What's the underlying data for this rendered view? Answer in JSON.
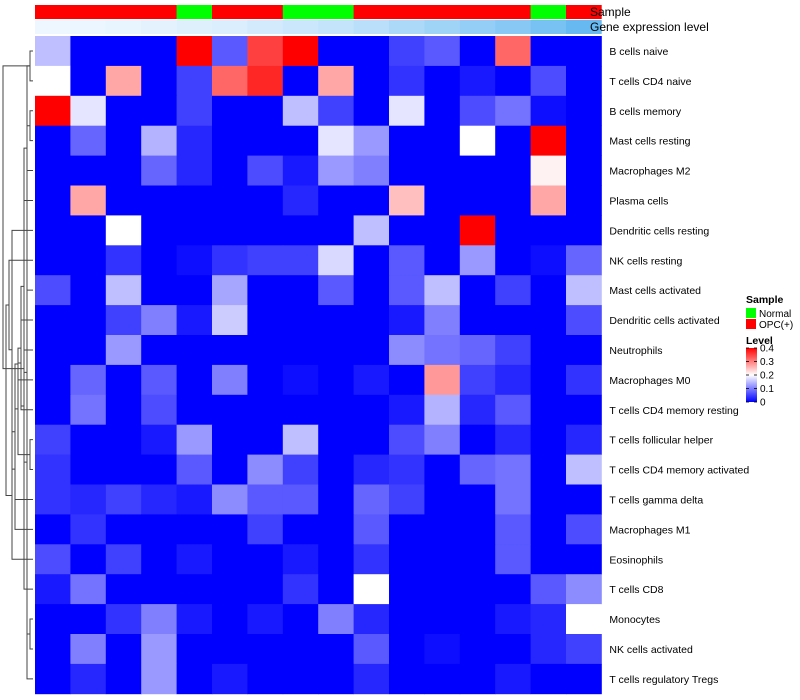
{
  "chart_data": {
    "type": "heatmap",
    "annotation_labels": {
      "sample": "Sample",
      "expression": "Gene expression level"
    },
    "sample_groups": [
      "OPC",
      "OPC",
      "OPC",
      "OPC",
      "Normal",
      "OPC",
      "OPC",
      "Normal",
      "Normal",
      "OPC",
      "OPC",
      "OPC",
      "OPC",
      "OPC",
      "Normal",
      "OPC"
    ],
    "expression_annotation": [
      0.01,
      0.02,
      0.03,
      0.05,
      0.07,
      0.09,
      0.12,
      0.15,
      0.18,
      0.22,
      0.27,
      0.32,
      0.37,
      0.42,
      0.48,
      0.55
    ],
    "rows": [
      "B cells naive",
      "T cells CD4 naive",
      "B cells memory",
      "Mast cells resting",
      "Macrophages M2",
      "Plasma cells",
      "Dendritic cells resting",
      "NK cells resting",
      "Mast cells activated",
      "Dendritic cells activated",
      "Neutrophils",
      "Macrophages M0",
      "T cells CD4 memory resting",
      "T cells follicular helper",
      "T cells CD4 memory activated",
      "T cells gamma delta",
      "Macrophages M1",
      "Eosinophils",
      "T cells CD8",
      "Monocytes",
      "NK cells activated",
      "T cells regulatory  Tregs"
    ],
    "values": [
      [
        0.15,
        0,
        0,
        0,
        0.4,
        0.07,
        0.35,
        0.4,
        0,
        0,
        0.05,
        0.07,
        0,
        0.32,
        0,
        0
      ],
      [
        0.2,
        0,
        0.27,
        0,
        0.05,
        0.32,
        0.37,
        0,
        0.27,
        0,
        0.04,
        0,
        0.02,
        0,
        0.06,
        0
      ],
      [
        0.4,
        0.18,
        0,
        0,
        0.05,
        0,
        0,
        0.15,
        0.05,
        0,
        0.18,
        0,
        0.06,
        0.09,
        0.01,
        0
      ],
      [
        0,
        0.08,
        0,
        0.14,
        0.03,
        0,
        0,
        0,
        0.18,
        0.12,
        0,
        0,
        0.2,
        0,
        0.4,
        0
      ],
      [
        0,
        0,
        0,
        0.08,
        0.03,
        0,
        0.06,
        0.02,
        0.12,
        0.1,
        0,
        0,
        0,
        0,
        0.21,
        0
      ],
      [
        0,
        0.27,
        0,
        0,
        0,
        0,
        0,
        0.03,
        0,
        0,
        0.25,
        0,
        0,
        0,
        0.27,
        0
      ],
      [
        0,
        0,
        0.2,
        0,
        0,
        0,
        0,
        0,
        0,
        0.15,
        0,
        0,
        0.4,
        0,
        0,
        0
      ],
      [
        0,
        0,
        0.04,
        0,
        0.01,
        0.04,
        0.05,
        0.05,
        0.17,
        0,
        0.07,
        0,
        0.12,
        0,
        0.01,
        0.08
      ],
      [
        0.06,
        0,
        0.15,
        0,
        0,
        0.13,
        0,
        0,
        0.07,
        0,
        0.07,
        0.15,
        0,
        0.05,
        0,
        0.15
      ],
      [
        0,
        0,
        0.05,
        0.1,
        0.02,
        0.16,
        0,
        0,
        0,
        0,
        0.02,
        0.1,
        0,
        0,
        0,
        0.06
      ],
      [
        0,
        0,
        0.12,
        0,
        0,
        0,
        0,
        0,
        0,
        0,
        0.11,
        0.09,
        0.08,
        0.05,
        0,
        0
      ],
      [
        0,
        0.08,
        0,
        0.07,
        0,
        0.1,
        0,
        0.01,
        0,
        0.02,
        0,
        0.28,
        0.05,
        0.03,
        0,
        0.04
      ],
      [
        0,
        0.09,
        0,
        0.06,
        0,
        0,
        0,
        0,
        0,
        0,
        0.02,
        0.14,
        0.03,
        0.07,
        0,
        0
      ],
      [
        0.05,
        0,
        0,
        0.02,
        0.12,
        0,
        0,
        0.15,
        0,
        0,
        0.06,
        0.1,
        0,
        0.03,
        0,
        0.03
      ],
      [
        0.04,
        0,
        0,
        0,
        0.07,
        0,
        0.11,
        0.05,
        0,
        0.03,
        0.04,
        0,
        0.08,
        0.09,
        0,
        0.15
      ],
      [
        0.04,
        0.03,
        0.05,
        0.03,
        0.02,
        0.11,
        0.07,
        0.07,
        0,
        0.08,
        0.05,
        0,
        0,
        0.09,
        0,
        0
      ],
      [
        0,
        0.04,
        0,
        0,
        0,
        0,
        0.05,
        0,
        0,
        0.07,
        0,
        0,
        0,
        0.07,
        0,
        0.06
      ],
      [
        0.06,
        0,
        0.05,
        0,
        0.02,
        0,
        0,
        0.02,
        0,
        0.04,
        0,
        0,
        0,
        0.07,
        0,
        0
      ],
      [
        0.02,
        0.09,
        0,
        0,
        0,
        0,
        0,
        0.04,
        0,
        0.2,
        0,
        0,
        0,
        0,
        0.07,
        0.11
      ],
      [
        0,
        0,
        0.04,
        0.1,
        0.02,
        0,
        0.02,
        0,
        0.1,
        0.03,
        0,
        0,
        0,
        0.02,
        0.03,
        0.2
      ],
      [
        0,
        0.1,
        0,
        0.12,
        0,
        0,
        0,
        0,
        0,
        0.07,
        0,
        0.01,
        0,
        0,
        0.03,
        0.05
      ],
      [
        0,
        0.03,
        0,
        0.12,
        0,
        0.02,
        0,
        0,
        0,
        0.03,
        0,
        0,
        0,
        0.02,
        0,
        0
      ]
    ],
    "dendrogram": [
      [
        0,
        1
      ],
      [
        19,
        20
      ],
      [
        21,
        22
      ],
      [
        8,
        23
      ],
      [
        5,
        24
      ],
      [
        10,
        25
      ],
      [
        12,
        26
      ],
      [
        9,
        27
      ],
      [
        11,
        28
      ],
      [
        13,
        14
      ],
      [
        30,
        15
      ],
      [
        29,
        31
      ],
      [
        17,
        32
      ],
      [
        16,
        33
      ],
      [
        2,
        3
      ],
      [
        35,
        6
      ],
      [
        36,
        4
      ],
      [
        37,
        7
      ],
      [
        38,
        18
      ],
      [
        34,
        39
      ],
      [
        22,
        40
      ]
    ],
    "legend_sample": {
      "title": "Sample",
      "items": [
        {
          "label": "Normal",
          "color": "#00ff00"
        },
        {
          "label": "OPC(+)",
          "color": "#ff0000"
        }
      ]
    },
    "legend_level": {
      "title": "Level",
      "ticks": [
        "0.4",
        "0.3",
        "0.2",
        "0.1",
        "0"
      ],
      "range": [
        0,
        0.4
      ]
    },
    "color_scale": {
      "low": "#0000ff",
      "mid": "#ffffff",
      "high": "#ff0000",
      "min": 0,
      "max": 0.4
    }
  }
}
